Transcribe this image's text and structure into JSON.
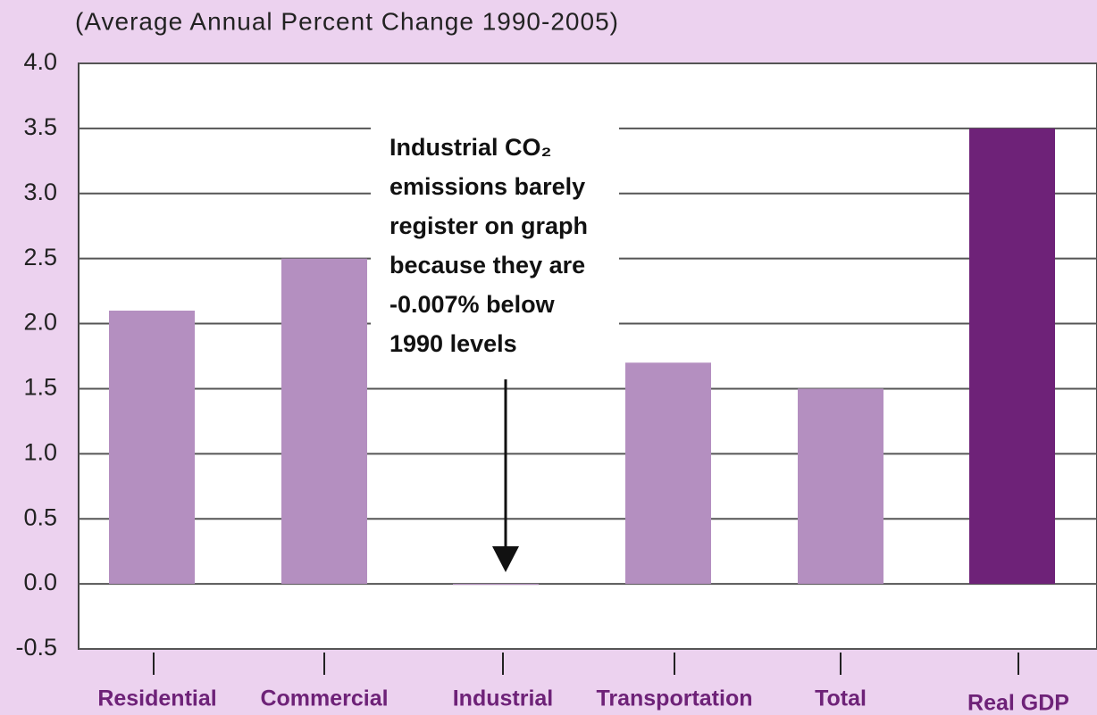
{
  "chart_data": {
    "type": "bar",
    "subtitle": "(Average Annual Percent Change 1990-2005)",
    "categories": [
      "Residential",
      "Commercial",
      "Industrial",
      "Transportation",
      "Total",
      "Real GDP"
    ],
    "values": [
      2.1,
      2.5,
      -0.007,
      1.7,
      1.5,
      3.5
    ],
    "colors": [
      "#b48fc0",
      "#b48fc0",
      "#b48fc0",
      "#b48fc0",
      "#b48fc0",
      "#6e2278"
    ],
    "ylim": [
      -0.5,
      4.0
    ],
    "yticks": [
      -0.5,
      {
        "value": 0,
        "label": "0.0"
      },
      0.5,
      {
        "value": 1,
        "label": "1.0"
      },
      1.5,
      {
        "value": 2,
        "label": "2.0"
      },
      2.5,
      {
        "value": 3,
        "label": "3.0"
      },
      3.5,
      {
        "value": 4,
        "label": "4.0"
      }
    ],
    "grid": true,
    "annotation": [
      "Industrial CO₂",
      "emissions barely",
      "register on graph",
      "because they are",
      "-0.007% below",
      "1990 levels"
    ]
  }
}
